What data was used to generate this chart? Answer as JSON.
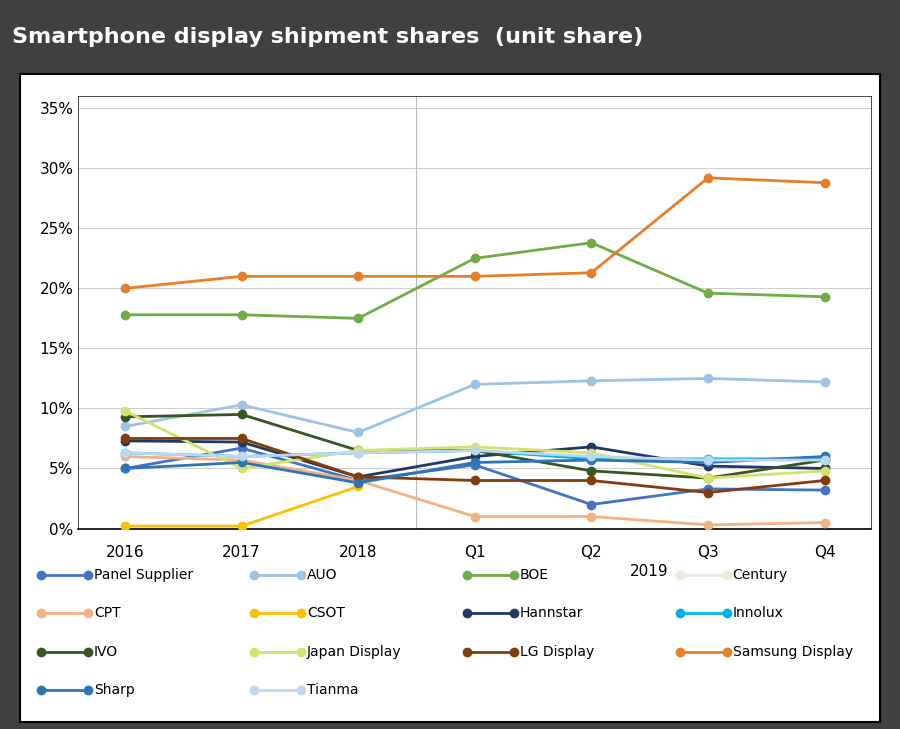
{
  "title": "Smartphone display shipment shares  (unit share)",
  "title_color": "#ffffff",
  "title_bg_color": "#7f7f7f",
  "plot_bg_color": "#ffffff",
  "outer_bg_color": "#404040",
  "ylim": [
    0.0,
    0.36
  ],
  "yticks": [
    0.0,
    0.05,
    0.1,
    0.15,
    0.2,
    0.25,
    0.3,
    0.35
  ],
  "ytick_labels": [
    "0%",
    "5%",
    "10%",
    "15%",
    "20%",
    "25%",
    "30%",
    "35%"
  ],
  "series": [
    {
      "name": "Panel Supplier",
      "color": "#4472C4",
      "values": [
        0.05,
        0.067,
        0.04,
        0.053,
        0.02,
        0.033,
        0.032
      ]
    },
    {
      "name": "AUO",
      "color": "#9DC3E6",
      "values": [
        0.085,
        0.103,
        0.08,
        0.12,
        0.123,
        0.125,
        0.122
      ]
    },
    {
      "name": "BOE",
      "color": "#70AD47",
      "values": [
        0.178,
        0.178,
        0.175,
        0.225,
        0.238,
        0.196,
        0.193
      ]
    },
    {
      "name": "Century",
      "color": "#E2EFDA",
      "values": [
        null,
        null,
        null,
        null,
        null,
        null,
        null
      ]
    },
    {
      "name": "CPT",
      "color": "#F4B183",
      "values": [
        0.06,
        0.057,
        0.04,
        0.01,
        0.01,
        0.003,
        0.005
      ]
    },
    {
      "name": "CSOT",
      "color": "#FFC000",
      "values": [
        0.002,
        0.002,
        0.035,
        null,
        null,
        null,
        null
      ]
    },
    {
      "name": "Hannstar",
      "color": "#203864",
      "values": [
        0.073,
        0.072,
        0.043,
        0.06,
        0.068,
        0.052,
        0.05
      ]
    },
    {
      "name": "Innolux",
      "color": "#00B0F0",
      "values": [
        0.063,
        0.06,
        0.063,
        0.065,
        0.058,
        0.058,
        0.058
      ]
    },
    {
      "name": "IVO",
      "color": "#375623",
      "values": [
        0.093,
        0.095,
        0.065,
        0.065,
        0.048,
        0.042,
        0.057
      ]
    },
    {
      "name": "Japan Display",
      "color": "#D4E16A",
      "values": [
        0.098,
        0.05,
        0.065,
        0.068,
        0.063,
        0.042,
        0.048
      ]
    },
    {
      "name": "LG Display",
      "color": "#843C0C",
      "values": [
        0.075,
        0.075,
        0.043,
        0.04,
        0.04,
        0.03,
        0.04
      ]
    },
    {
      "name": "Samsung Display",
      "color": "#E57F2A",
      "values": [
        0.2,
        0.21,
        0.21,
        0.21,
        0.213,
        0.292,
        0.288
      ]
    },
    {
      "name": "Sharp",
      "color": "#2E75B6",
      "values": [
        0.05,
        0.055,
        0.038,
        0.055,
        0.057,
        0.055,
        0.06
      ]
    },
    {
      "name": "Tianma",
      "color": "#BDD7EE",
      "values": [
        0.063,
        0.06,
        0.063,
        0.065,
        0.06,
        0.057,
        0.057
      ]
    }
  ],
  "border_color": "#000000",
  "grid_color": "#d0d0d0",
  "tick_fontsize": 11,
  "title_fontsize": 16,
  "legend_fontsize": 10,
  "marker_size": 6,
  "line_width": 2.0
}
